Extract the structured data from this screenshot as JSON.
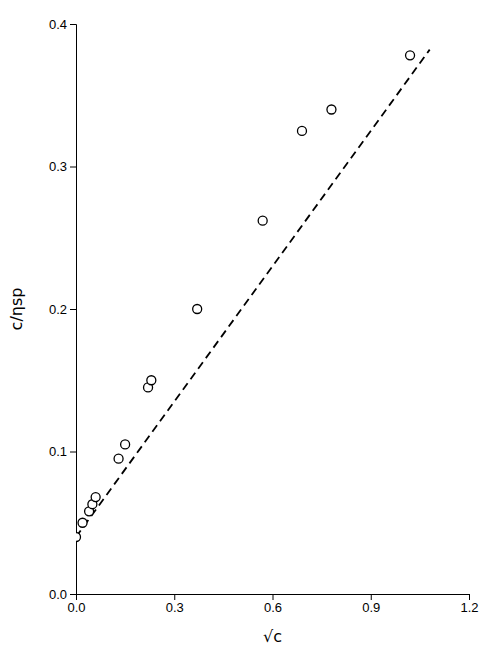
{
  "chart_data": {
    "type": "scatter",
    "xlabel": "√c",
    "ylabel": "c/ηsp",
    "series": [
      {
        "type": "line",
        "line_style": "dashed",
        "color": "black",
        "x": [
          0.0,
          1.08
        ],
        "values": [
          0.04,
          0.382
        ]
      },
      {
        "type": "scatter",
        "marker": "circle",
        "color": "black",
        "x": [
          0.0,
          0.02,
          0.04,
          0.05,
          0.06,
          0.13,
          0.15,
          0.22,
          0.23,
          0.37,
          0.57,
          0.69,
          0.78,
          1.02
        ],
        "values": [
          0.04,
          0.05,
          0.058,
          0.063,
          0.068,
          0.095,
          0.105,
          0.145,
          0.15,
          0.2,
          0.262,
          0.325,
          0.34,
          0.378
        ]
      }
    ],
    "xlim": [
      0.0,
      1.2
    ],
    "ylim": [
      0.0,
      0.4
    ],
    "xticks": [
      {
        "value": 0.0,
        "label": "0.0"
      },
      0.3,
      0.6,
      0.9,
      1.2
    ],
    "yticks": [
      {
        "value": 0.0,
        "label": "0.0"
      },
      0.1,
      0.2,
      0.3,
      0.4
    ],
    "grid": false
  }
}
